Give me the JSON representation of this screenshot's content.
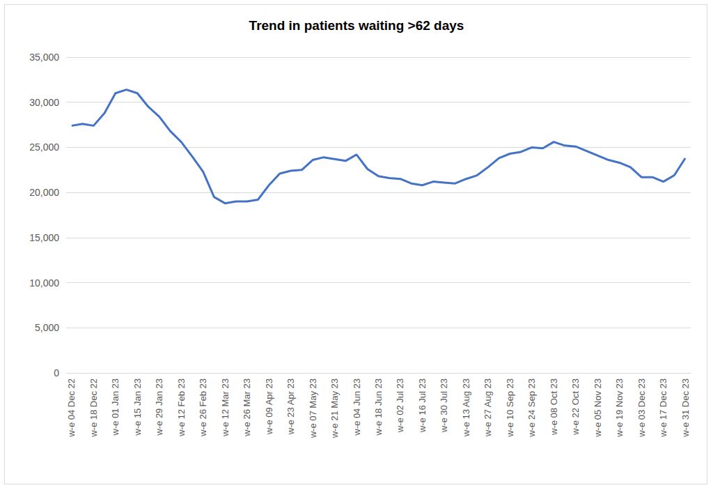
{
  "chart_data": {
    "type": "line",
    "title": "Trend in patients waiting >62 days",
    "categories": [
      "w-e 04 Dec 22",
      null,
      "w-e 18 Dec 22",
      null,
      "w-e 01 Jan 23",
      null,
      "w-e 15 Jan 23",
      null,
      "w-e 29 Jan 23",
      null,
      "w-e 12 Feb 23",
      null,
      "w-e 26 Feb 23",
      null,
      "w-e 12 Mar 23",
      null,
      "w-e 26 Mar 23",
      null,
      "w-e 09 Apr 23",
      null,
      "w-e 23 Apr 23",
      null,
      "w-e 07 May 23",
      null,
      "w-e 21 May 23",
      null,
      "w-e 04 Jun 23",
      null,
      "w-e 18 Jun 23",
      null,
      "w-e 02 Jul 23",
      null,
      "w-e 16 Jul 23",
      null,
      "w-e 30 Jul 23",
      null,
      "w-e 13 Aug 23",
      null,
      "w-e 27 Aug 23",
      null,
      "w-e 10 Sep 23",
      null,
      "w-e 24 Sep 23",
      null,
      "w-e 08 Oct 23",
      null,
      "w-e 22 Oct 23",
      null,
      "w-e 05 Nov 23",
      null,
      "w-e 19 Nov 23",
      null,
      "w-e 03 Dec 23",
      null,
      "w-e 17 Dec 23",
      null,
      "w-e 31 Dec 23"
    ],
    "values": [
      27400,
      27600,
      27400,
      28800,
      31000,
      31400,
      31000,
      29500,
      28400,
      26800,
      25600,
      24000,
      22300,
      19500,
      18800,
      19000,
      19000,
      19200,
      20800,
      22100,
      22400,
      22500,
      23600,
      23900,
      23700,
      23500,
      24200,
      22600,
      21800,
      21600,
      21500,
      21000,
      20800,
      21200,
      21100,
      21000,
      21500,
      21900,
      22800,
      23800,
      24300,
      24500,
      25000,
      24900,
      25600,
      25200,
      25100,
      24600,
      24100,
      23600,
      23300,
      22800,
      21700,
      21700,
      21200,
      21900,
      23800
    ],
    "color": "#4472c4",
    "ylim": [
      0,
      35000
    ],
    "yticks": [
      0,
      {
        "value": 5000,
        "label": "5,000"
      },
      {
        "value": 10000,
        "label": "10,000"
      },
      {
        "value": 15000,
        "label": "15,000"
      },
      {
        "value": 20000,
        "label": "20,000"
      },
      {
        "value": 25000,
        "label": "25,000"
      },
      {
        "value": 30000,
        "label": "30,000"
      },
      {
        "value": 35000,
        "label": "35,000"
      }
    ],
    "grid": true
  }
}
